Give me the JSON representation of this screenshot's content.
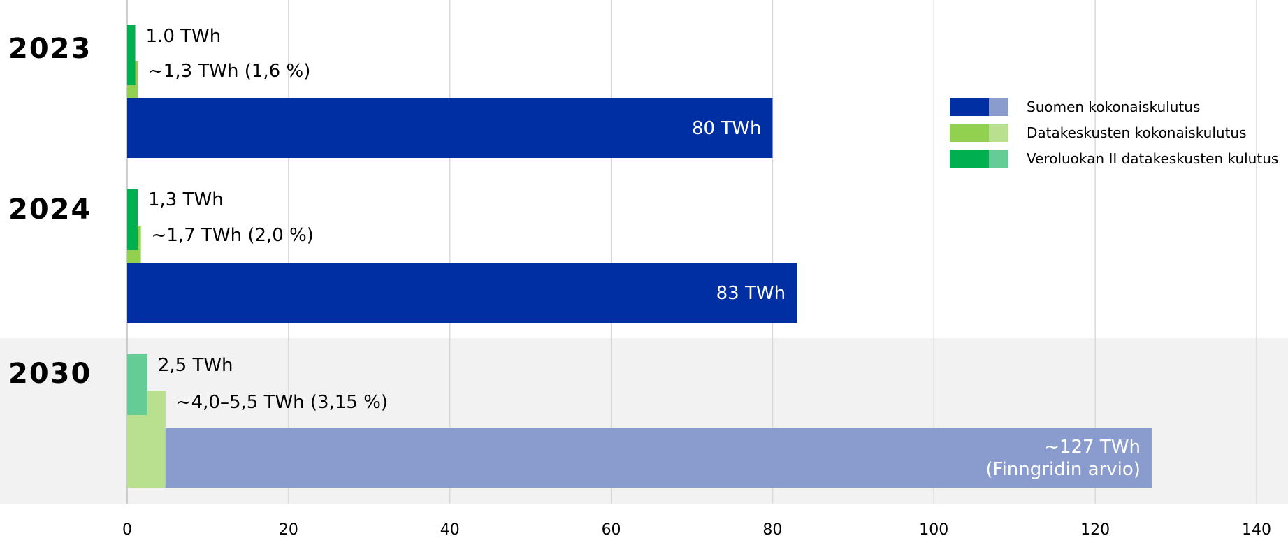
{
  "chart_data": {
    "type": "bar",
    "orientation": "horizontal",
    "categories": [
      "2023",
      "2024",
      "2030"
    ],
    "xlim": [
      0,
      140
    ],
    "x_ticks": [
      "0",
      "20",
      "40",
      "60",
      "80",
      "100",
      "120",
      "140"
    ],
    "grid": "vertical",
    "legend_position": "right",
    "highlighted_category": "2030",
    "series": [
      {
        "name": "Suomen kokonaiskulutus",
        "color": "#002EA3",
        "projected_color": "#8A9CCD",
        "values": [
          80,
          83,
          127
        ],
        "labels": [
          "80 TWh",
          "83 TWh",
          "~127 TWh\n(Finngridin arvio)"
        ]
      },
      {
        "name": "Datakeskusten kokonaiskulutus",
        "color": "#92D050",
        "projected_color": "#B8E08E",
        "values": [
          1.3,
          1.7,
          4.75
        ],
        "labels": [
          "~1,3 TWh (1,6 %)",
          "~1,7 TWh (2,0 %)",
          "~4,0–5,5 TWh (3,15 %)"
        ]
      },
      {
        "name": "Veroluokan II datakeskusten kulutus",
        "color": "#00B050",
        "projected_color": "#66CC96",
        "values": [
          1.0,
          1.3,
          2.5
        ],
        "labels": [
          "1.0 TWh",
          "1,3 TWh",
          "2,5 TWh"
        ]
      }
    ]
  }
}
